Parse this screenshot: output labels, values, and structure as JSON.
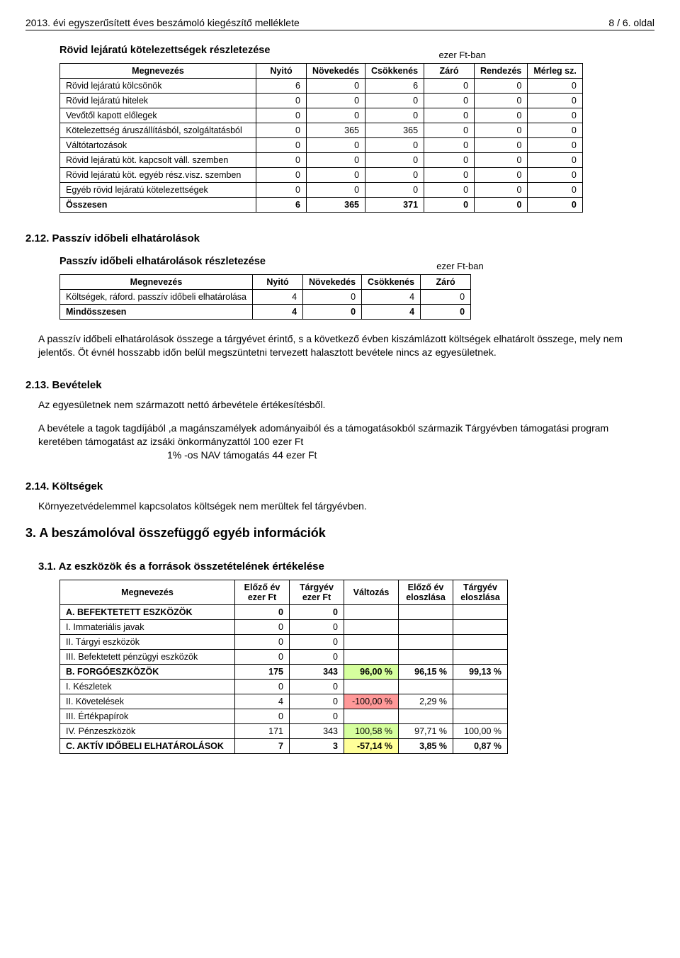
{
  "header": {
    "left": "2013. évi egyszerűsített éves beszámoló kiegészítő melléklete",
    "right": "8 / 6. oldal"
  },
  "short_liab": {
    "title": "Rövid lejáratú kötelezettségek részletezése",
    "unit": "ezer Ft-ban",
    "cols": [
      "Megnevezés",
      "Nyitó",
      "Növekedés",
      "Csökkenés",
      "Záró",
      "Rendezés",
      "Mérleg sz."
    ],
    "rows": [
      [
        "Rövid lejáratú kölcsönök",
        "6",
        "0",
        "6",
        "0",
        "0",
        "0"
      ],
      [
        "Rövid lejáratú hitelek",
        "0",
        "0",
        "0",
        "0",
        "0",
        "0"
      ],
      [
        "Vevőtől kapott előlegek",
        "0",
        "0",
        "0",
        "0",
        "0",
        "0"
      ],
      [
        "Kötelezettség áruszállításból, szolgáltatásból",
        "0",
        "365",
        "365",
        "0",
        "0",
        "0"
      ],
      [
        "Váltótartozások",
        "0",
        "0",
        "0",
        "0",
        "0",
        "0"
      ],
      [
        "Rövid lejáratú köt. kapcsolt váll. szemben",
        "0",
        "0",
        "0",
        "0",
        "0",
        "0"
      ],
      [
        "Rövid lejáratú köt. egyéb rész.visz. szemben",
        "0",
        "0",
        "0",
        "0",
        "0",
        "0"
      ],
      [
        "Egyéb rövid lejáratú kötelezettségek",
        "0",
        "0",
        "0",
        "0",
        "0",
        "0"
      ]
    ],
    "total": [
      "Összesen",
      "6",
      "365",
      "371",
      "0",
      "0",
      "0"
    ]
  },
  "s212": {
    "heading": "2.12. Passzív időbeli elhatárolások",
    "subtitle": "Passzív időbeli elhatárolások  részletezése",
    "unit": "ezer Ft-ban",
    "cols": [
      "Megnevezés",
      "Nyitó",
      "Növekedés",
      "Csökkenés",
      "Záró"
    ],
    "rows": [
      [
        "Költségek, ráford. passzív időbeli elhatárolása",
        "4",
        "0",
        "4",
        "0"
      ]
    ],
    "total": [
      "Mindösszesen",
      "4",
      "0",
      "4",
      "0"
    ],
    "para": "A passzív időbeli elhatárolások összege a tárgyévet érintő, s a következő évben kiszámlázott költségek elhatárolt összege, mely nem jelentős. Öt évnél hosszabb időn belül megszüntetni tervezett halasztott bevétele nincs az egyesületnek."
  },
  "s213": {
    "heading": "2.13. Bevételek",
    "p1": "Az egyesületnek  nem  származott nettó árbevétele  értékesítésből.",
    "p2": "A bevétele  a tagok tagdíjából ,a magánszamélyek adományaiból és a támogatásokból származik Tárgyévben támogatási program keretében  támogatást az izsáki önkormányzattól 100 ezer Ft",
    "p3": "1% -os        NAV támogatás                              44 ezer Ft"
  },
  "s214": {
    "heading": "2.14. Költségek",
    "p": "Környezetvédelemmel kapcsolatos költségek nem merültek fel tárgyévben."
  },
  "s3": {
    "heading": "3. A beszámolóval összefüggő egyéb információk",
    "sub": "3.1. Az eszközök és a források összetételének értékelése"
  },
  "assets": {
    "cols": [
      "Megnevezés",
      "Előző év\nezer Ft",
      "Tárgyév\nezer Ft",
      "Változás",
      "Előző év\neloszlása",
      "Tárgyév\neloszlása"
    ],
    "rows": [
      {
        "label": "A. BEFEKTETETT ESZKÖZÖK",
        "v": [
          "0",
          "0",
          "",
          "",
          ""
        ],
        "cat": true
      },
      {
        "label": "I. Immateriális javak",
        "v": [
          "0",
          "0",
          "",
          "",
          ""
        ]
      },
      {
        "label": "II. Tárgyi eszközök",
        "v": [
          "0",
          "0",
          "",
          "",
          ""
        ]
      },
      {
        "label": "III. Befektetett pénzügyi eszközök",
        "v": [
          "0",
          "0",
          "",
          "",
          ""
        ]
      },
      {
        "label": "B. FORGÓESZKÖZÖK",
        "v": [
          "175",
          "343",
          "96,00 %",
          "96,15 %",
          "99,13 %"
        ],
        "cat": true,
        "hl": [
          "",
          "",
          "green",
          "",
          ""
        ]
      },
      {
        "label": "I. Készletek",
        "v": [
          "0",
          "0",
          "",
          "",
          ""
        ]
      },
      {
        "label": "II. Követelések",
        "v": [
          "4",
          "0",
          "-100,00 %",
          "2,29 %",
          ""
        ],
        "hl": [
          "",
          "",
          "red",
          "",
          ""
        ]
      },
      {
        "label": "III. Értékpapírok",
        "v": [
          "0",
          "0",
          "",
          "",
          ""
        ]
      },
      {
        "label": "IV. Pénzeszközök",
        "v": [
          "171",
          "343",
          "100,58 %",
          "97,71 %",
          "100,00 %"
        ],
        "hl": [
          "",
          "",
          "green",
          "",
          ""
        ]
      },
      {
        "label": "C. AKTÍV IDŐBELI ELHATÁROLÁSOK",
        "v": [
          "7",
          "3",
          "-57,14 %",
          "3,85 %",
          "0,87 %"
        ],
        "cat": true,
        "hl": [
          "",
          "",
          "yellow",
          "",
          ""
        ]
      }
    ]
  }
}
